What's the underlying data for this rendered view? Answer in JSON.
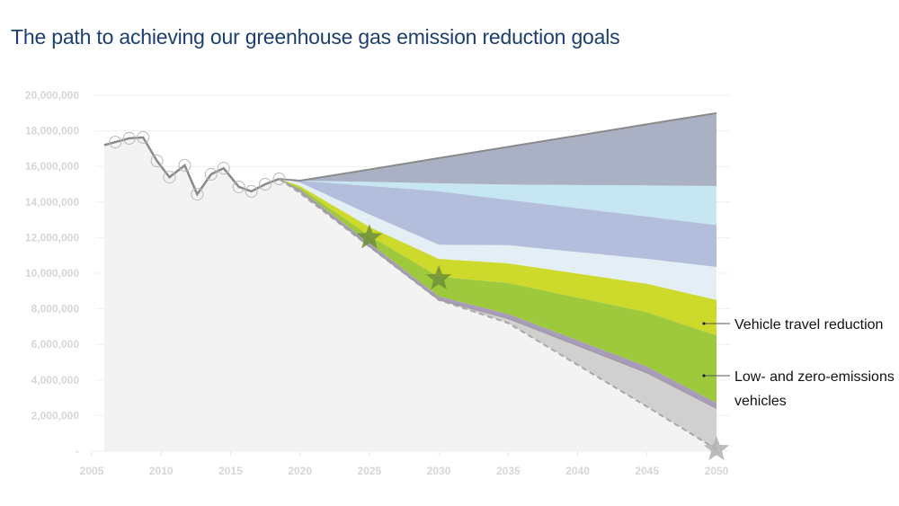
{
  "title": "The path to achieving our greenhouse gas emission reduction goals",
  "chart_data": {
    "type": "area",
    "title": "The path to achieving our greenhouse gas emission reduction goals",
    "xlabel": "",
    "ylabel": "",
    "xlim": [
      2005,
      2050
    ],
    "ylim": [
      0,
      20000000
    ],
    "x_ticks": [
      "2005",
      "2010",
      "2015",
      "2020",
      "2025",
      "2030",
      "2035",
      "2040",
      "2045",
      "2050"
    ],
    "y_ticks": [
      "-",
      "2,000,000",
      "4,000,000",
      "6,000,000",
      "8,000,000",
      "10,000,000",
      "12,000,000",
      "14,000,000",
      "16,000,000",
      "18,000,000",
      "20,000,000"
    ],
    "grid": true,
    "historical": {
      "line_start": {
        "x": 2005.9,
        "y": 17200000
      },
      "x": [
        2006.7,
        2007.7,
        2008.7,
        2009.7,
        2010.6,
        2011.7,
        2012.6,
        2013.6,
        2014.5,
        2015.6,
        2016.5,
        2017.5,
        2018.5
      ],
      "y": [
        17370000,
        17580000,
        17630000,
        16310000,
        15400000,
        16060000,
        14440000,
        15560000,
        15900000,
        14850000,
        14600000,
        15000000,
        15300000
      ]
    },
    "projection_x": [
      2018.5,
      2020,
      2025,
      2030,
      2035,
      2045,
      2050
    ],
    "boundaries": {
      "business_as_usual": [
        15300000,
        15200000,
        15830000,
        16470000,
        17100000,
        18370000,
        19000000
      ],
      "band2_top": [
        15300000,
        15200000,
        15130000,
        15050000,
        14980000,
        14930000,
        14900000
      ],
      "band3_top": [
        15300000,
        15200000,
        14900000,
        14600000,
        14120000,
        13180000,
        12700000
      ],
      "band4_top": [
        15300000,
        15100000,
        13300000,
        11600000,
        11570000,
        10800000,
        10350000
      ],
      "vehicle_travel_top": [
        15300000,
        14900000,
        12600000,
        10800000,
        10550000,
        9400000,
        8500000
      ],
      "low_zero_emissions_top": [
        15300000,
        14800000,
        12100000,
        9800000,
        9450000,
        7800000,
        6500000
      ],
      "low_zero_emissions_bottom": [
        15300000,
        14700000,
        11700000,
        8700000,
        7700000,
        4750000,
        2700000
      ],
      "purple_bottom": [
        15300000,
        14600000,
        11500000,
        8500000,
        7450000,
        4400000,
        2400000
      ],
      "target_path": [
        15300000,
        14500000,
        11500000,
        8500000,
        7200000,
        2500000,
        100000
      ]
    },
    "targets": {
      "x": [
        2025,
        2030,
        2050
      ],
      "y": [
        12000000,
        9700000,
        100000
      ]
    },
    "annotations": [
      "Vehicle travel reduction",
      "Low- and zero-emissions vehicles"
    ],
    "colors": {
      "background_area": "#f3f3f3",
      "gap_area": "#d0d0d0",
      "purple": "#a99cbb",
      "low_zero_emissions": "#9ec93c",
      "vehicle_travel": "#cdd92b",
      "band4": "#e4eef5",
      "band3": "#b2bedc",
      "band2": "#c6e6f2",
      "band1": "#abb1c4",
      "line": "#8a8a8a",
      "star_green": "#6e8f3a",
      "star_gray": "#b0b0b0",
      "title": "#1b3f6e"
    }
  }
}
